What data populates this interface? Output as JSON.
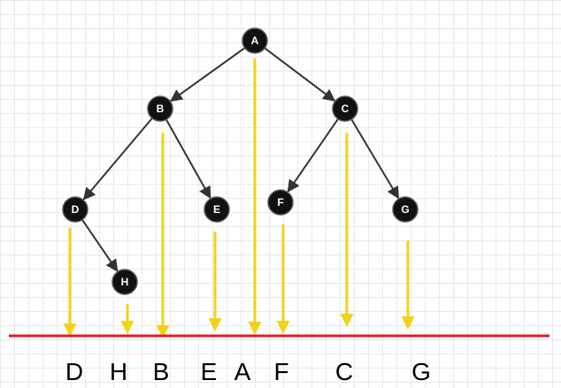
{
  "tree": {
    "nodes": [
      {
        "id": "A",
        "label": "A"
      },
      {
        "id": "B",
        "label": "B"
      },
      {
        "id": "C",
        "label": "C"
      },
      {
        "id": "D",
        "label": "D"
      },
      {
        "id": "E",
        "label": "E"
      },
      {
        "id": "F",
        "label": "F"
      },
      {
        "id": "G",
        "label": "G"
      },
      {
        "id": "H",
        "label": "H"
      }
    ],
    "edges": [
      {
        "from": "A",
        "to": "B"
      },
      {
        "from": "A",
        "to": "C"
      },
      {
        "from": "B",
        "to": "D"
      },
      {
        "from": "B",
        "to": "E"
      },
      {
        "from": "C",
        "to": "F"
      },
      {
        "from": "C",
        "to": "G"
      },
      {
        "from": "D",
        "to": "H"
      }
    ]
  },
  "output_sequence": [
    "D",
    "H",
    "B",
    "E",
    "A",
    "F",
    "C",
    "G"
  ],
  "colors": {
    "node_fill": "#111111",
    "edge": "#333333",
    "projection_arrow": "#f2d21a",
    "baseline": "#e31b23"
  }
}
